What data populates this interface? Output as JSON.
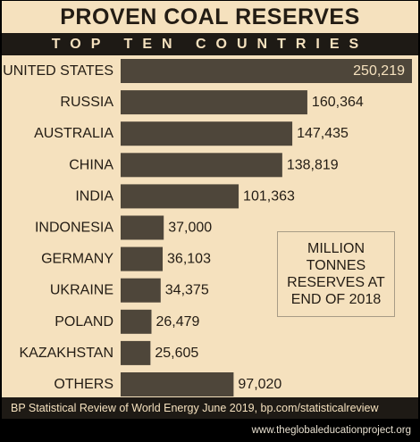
{
  "title": "PROVEN COAL RESERVES",
  "subtitle": "TOP TEN COUNTRIES",
  "note": "MILLION\nTONNES\nRESERVES AT\nEND OF 2018",
  "source": "BP Statistical Review of World Energy June 2019, bp.com/statisticalreview",
  "website": "www.theglobaleducationproject.org",
  "colors": {
    "background": "#f5e1be",
    "bar": "#4e463a",
    "band": "#1e1a15"
  },
  "chart_data": {
    "type": "bar",
    "orientation": "horizontal",
    "title": "PROVEN COAL RESERVES",
    "subtitle": "TOP TEN COUNTRIES",
    "categories": [
      "UNITED STATES",
      "RUSSIA",
      "AUSTRALIA",
      "CHINA",
      "INDIA",
      "INDONESIA",
      "GERMANY",
      "UKRAINE",
      "POLAND",
      "KAZAKHSTAN",
      "OTHERS"
    ],
    "values": [
      250219,
      160364,
      147435,
      138819,
      101363,
      37000,
      36103,
      34375,
      26479,
      25605,
      97020
    ],
    "value_labels": [
      "250,219",
      "160,364",
      "147,435",
      "138,819",
      "101,363",
      "37,000",
      "36,103",
      "34,375",
      "26,479",
      "25,605",
      "97,020"
    ],
    "xlim": [
      0,
      250219
    ],
    "unit": "MILLION TONNES RESERVES AT END OF 2018",
    "grid": false
  }
}
